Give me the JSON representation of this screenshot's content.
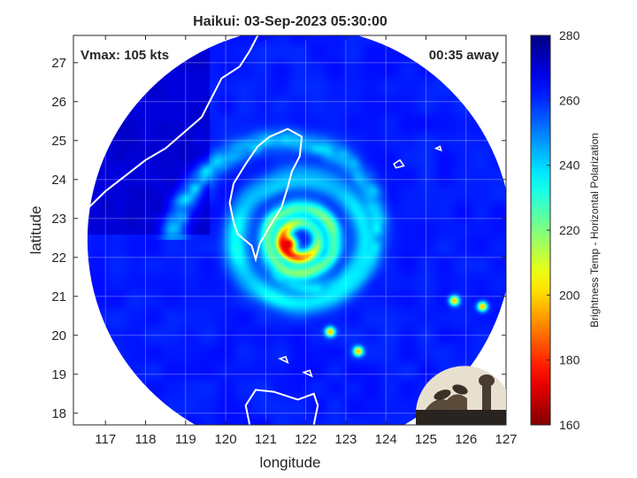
{
  "chart_data": {
    "type": "heatmap",
    "title": "Haikui: 03-Sep-2023 05:30:00",
    "xlabel": "longitude",
    "ylabel": "latitude",
    "xlim": [
      116.2,
      127.0
    ],
    "ylim": [
      17.7,
      27.7
    ],
    "xticks": [
      117,
      118,
      119,
      120,
      121,
      122,
      123,
      124,
      125,
      126,
      127
    ],
    "yticks": [
      18,
      19,
      20,
      21,
      22,
      23,
      24,
      25,
      26,
      27
    ],
    "grid": true,
    "annotations": {
      "vmax": "Vmax: 105 kts",
      "time_away": "00:35 away"
    },
    "storm_center": {
      "lon": 121.85,
      "lat": 22.45
    },
    "colorbar": {
      "label": "Brightness Temp - Horizontal Polarization",
      "range": [
        160,
        280
      ],
      "ticks": [
        160,
        180,
        200,
        220,
        240,
        260,
        280
      ],
      "colormap": "jet",
      "colors": [
        "#800000",
        "#ff0000",
        "#ffff00",
        "#00ffff",
        "#0000ff",
        "#000080"
      ]
    },
    "field": {
      "ambient_temp": 262,
      "cold_ocean_temp": 272,
      "rings": [
        {
          "r_deg": 0.45,
          "temp": 178,
          "width_deg": 0.18
        },
        {
          "r_deg": 0.85,
          "temp": 215,
          "width_deg": 0.22
        },
        {
          "r_deg": 1.6,
          "temp": 232,
          "width_deg": 0.3
        }
      ],
      "spiral_band_temp": 236,
      "coldest_core_temp": 168
    },
    "coastlines": {
      "taiwan": [
        [
          121.55,
          25.3
        ],
        [
          121.9,
          25.1
        ],
        [
          121.85,
          24.6
        ],
        [
          121.65,
          24.2
        ],
        [
          121.55,
          23.8
        ],
        [
          121.4,
          23.3
        ],
        [
          121.1,
          22.8
        ],
        [
          120.85,
          22.35
        ],
        [
          120.75,
          21.95
        ],
        [
          120.65,
          22.3
        ],
        [
          120.3,
          22.6
        ],
        [
          120.2,
          22.9
        ],
        [
          120.1,
          23.4
        ],
        [
          120.2,
          23.9
        ],
        [
          120.5,
          24.4
        ],
        [
          120.8,
          24.85
        ],
        [
          121.1,
          25.1
        ],
        [
          121.55,
          25.3
        ]
      ],
      "china": [
        [
          120.8,
          27.7
        ],
        [
          120.6,
          27.3
        ],
        [
          120.35,
          26.9
        ],
        [
          119.9,
          26.6
        ],
        [
          119.6,
          26.0
        ],
        [
          119.4,
          25.6
        ],
        [
          118.95,
          25.2
        ],
        [
          118.5,
          24.8
        ],
        [
          118.0,
          24.5
        ],
        [
          117.5,
          24.1
        ],
        [
          117.0,
          23.7
        ],
        [
          116.6,
          23.3
        ],
        [
          116.2,
          23.0
        ]
      ],
      "luzon": [
        [
          120.6,
          17.7
        ],
        [
          120.5,
          18.2
        ],
        [
          120.75,
          18.6
        ],
        [
          121.2,
          18.55
        ],
        [
          121.8,
          18.35
        ],
        [
          122.2,
          18.5
        ],
        [
          122.3,
          18.2
        ],
        [
          122.2,
          17.7
        ]
      ],
      "islands": [
        [
          [
            124.2,
            24.4
          ],
          [
            124.35,
            24.5
          ],
          [
            124.45,
            24.35
          ],
          [
            124.25,
            24.3
          ],
          [
            124.2,
            24.4
          ]
        ],
        [
          [
            125.25,
            24.8
          ],
          [
            125.35,
            24.85
          ],
          [
            125.38,
            24.75
          ],
          [
            125.25,
            24.8
          ]
        ],
        [
          [
            121.35,
            19.4
          ],
          [
            121.5,
            19.45
          ],
          [
            121.55,
            19.3
          ],
          [
            121.35,
            19.4
          ]
        ],
        [
          [
            121.95,
            19.05
          ],
          [
            122.1,
            19.1
          ],
          [
            122.15,
            18.95
          ],
          [
            121.95,
            19.05
          ]
        ]
      ]
    }
  },
  "watermark_text": "CIMSS"
}
